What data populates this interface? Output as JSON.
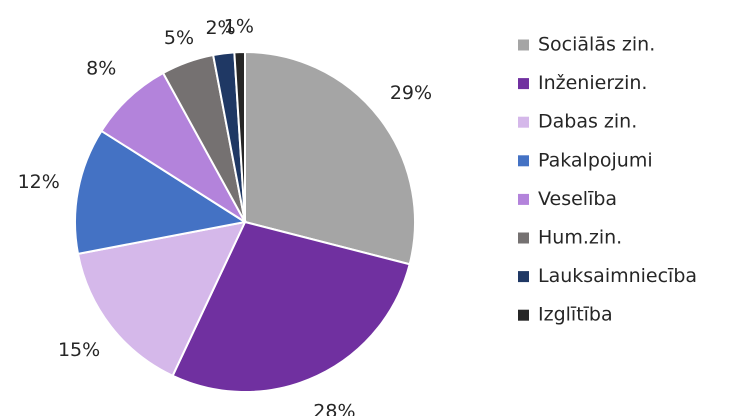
{
  "chart_data": {
    "type": "pie",
    "categories": [
      "Sociālās zin.",
      "Inženierzin.",
      "Dabas zin.",
      "Pakalpojumi",
      "Veselība",
      "Hum.zin.",
      "Lauksaimniecība",
      "Izglītība"
    ],
    "values": [
      29,
      28,
      15,
      12,
      8,
      5,
      2,
      1
    ],
    "value_labels": [
      "29%",
      "28%",
      "15%",
      "12%",
      "8%",
      "5%",
      "2%",
      "1%"
    ],
    "colors": [
      "#a5a5a5",
      "#7030a0",
      "#d5b8ea",
      "#4472c4",
      "#b383db",
      "#757171",
      "#1f3864",
      "#262626"
    ],
    "legend": "right"
  }
}
